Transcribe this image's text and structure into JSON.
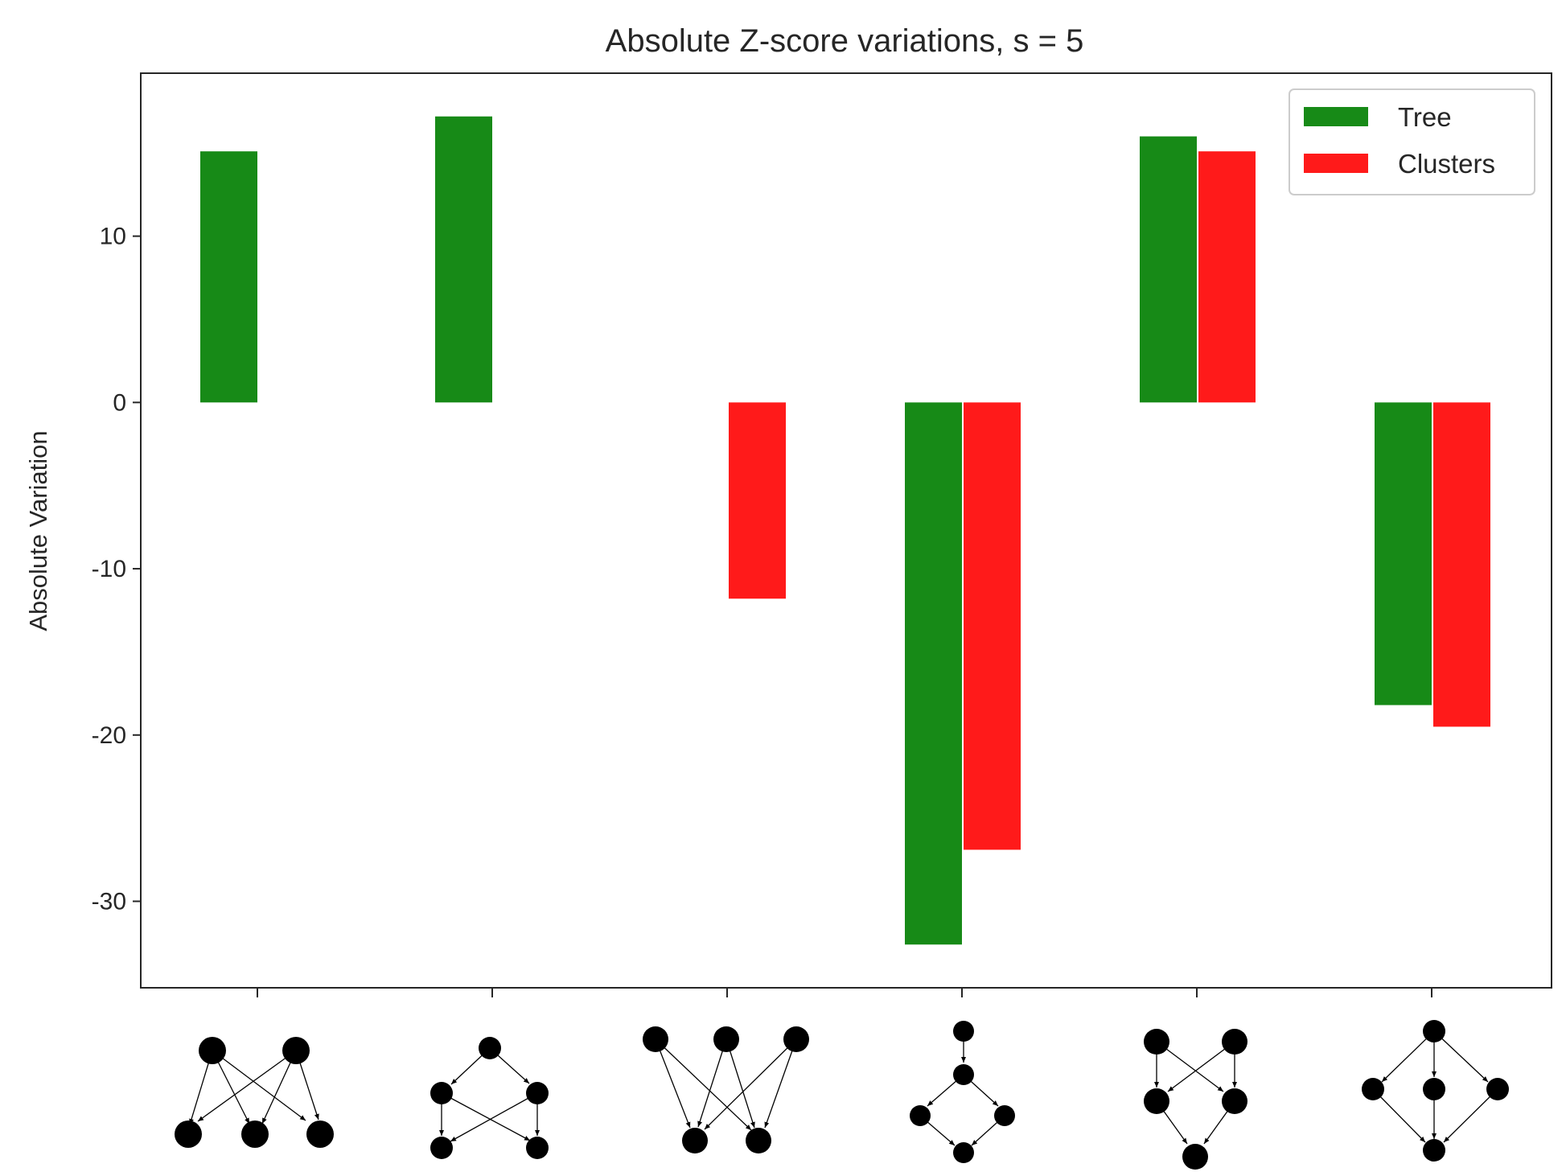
{
  "chart_data": {
    "type": "bar",
    "title": "Absolute Z-score variations, s = 5",
    "xlabel": "",
    "ylabel": "Absolute Variation",
    "categories": [
      "motif-1",
      "motif-2",
      "motif-3",
      "motif-4",
      "motif-5",
      "motif-6"
    ],
    "series": [
      {
        "name": "Tree",
        "color": "#178a17",
        "values": [
          15.1,
          17.2,
          null,
          -32.6,
          16.0,
          -18.2
        ]
      },
      {
        "name": "Clusters",
        "color": "#ff1a1a",
        "values": [
          null,
          null,
          -11.8,
          -26.9,
          15.1,
          -19.5
        ]
      }
    ],
    "ylim": [
      -35.2,
      19.8
    ],
    "yticks": [
      10,
      0,
      -10,
      -20,
      -30
    ],
    "ytick_labels": [
      "10",
      "0",
      "-10",
      "-20",
      "-30"
    ],
    "grid": false,
    "legend": "top-right",
    "xtick_icons": "network-motif-diagrams"
  }
}
